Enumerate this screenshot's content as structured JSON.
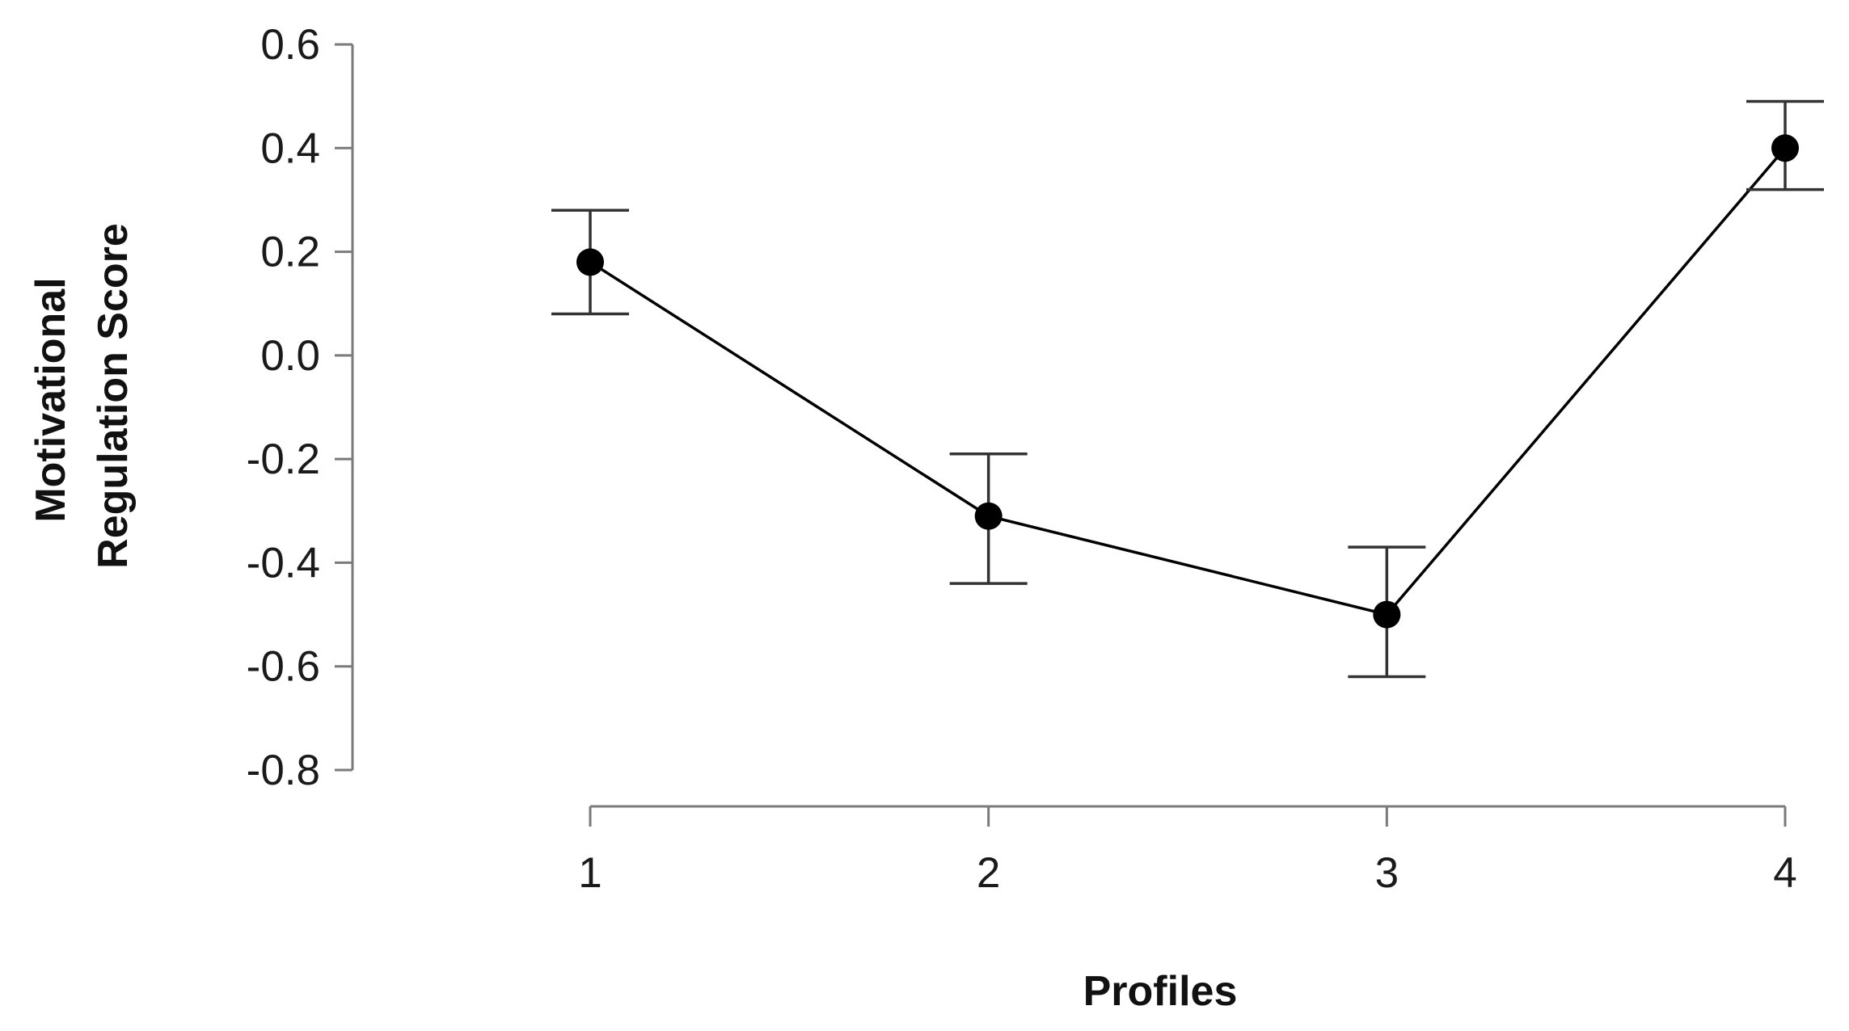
{
  "chart_data": {
    "type": "line",
    "xlabel": "Profiles",
    "ylabel_lines": [
      "Motivational",
      "Regulation Score"
    ],
    "categories": [
      "1",
      "2",
      "3",
      "4"
    ],
    "values": [
      0.18,
      -0.31,
      -0.5,
      0.4
    ],
    "error_bars": [
      {
        "low": 0.08,
        "high": 0.28
      },
      {
        "low": -0.44,
        "high": -0.19
      },
      {
        "low": -0.62,
        "high": -0.37
      },
      {
        "low": 0.32,
        "high": 0.49
      }
    ],
    "yticks": [
      "0.6",
      "0.4",
      "0.2",
      "0.0",
      "-0.2",
      "-0.4",
      "-0.6",
      "-0.8"
    ],
    "ylim": [
      -0.8,
      0.6
    ],
    "grid": false,
    "legend": "none",
    "colors": {
      "line": "#000000",
      "axis": "#7a7a7a",
      "text": "#1a1a1a"
    }
  }
}
